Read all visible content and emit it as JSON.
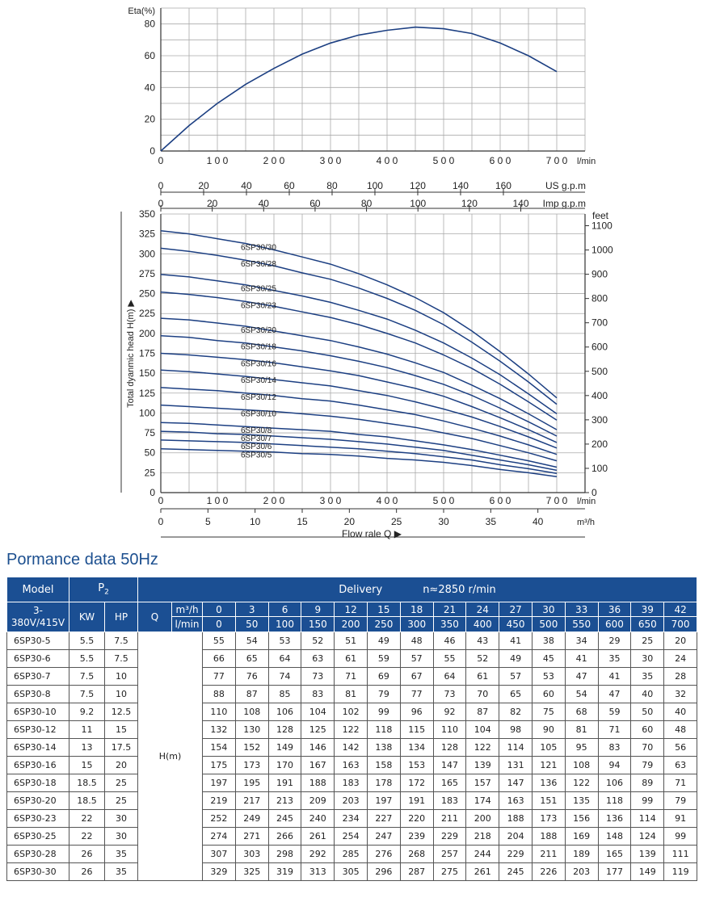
{
  "chart_data": [
    {
      "type": "line",
      "ylabel": "Eta(%)",
      "xunit": "l/min",
      "xlim": [
        0,
        700
      ],
      "ylim": [
        0,
        90
      ],
      "grid": true,
      "x_ticks": [
        0,
        100,
        200,
        300,
        400,
        500,
        600,
        700
      ],
      "y_ticks": [
        0,
        20,
        40,
        60,
        80
      ],
      "series": [
        {
          "x": [
            0,
            50,
            100,
            150,
            200,
            250,
            300,
            350,
            400,
            450,
            500,
            550,
            600,
            650,
            700
          ],
          "y": [
            0,
            16,
            30,
            42,
            52,
            61,
            68,
            73,
            76,
            78,
            77,
            74,
            68,
            60,
            50
          ]
        }
      ]
    },
    {
      "type": "line",
      "ylabel": "Total dyanmic head H(m) ▶",
      "xlabel": "Flow rale Q ▶",
      "xlim": [
        0,
        700
      ],
      "ylim": [
        0,
        350
      ],
      "grid": true,
      "x_ticks": [
        0,
        100,
        200,
        300,
        400,
        500,
        600,
        700
      ],
      "y_ticks": [
        0,
        25,
        50,
        75,
        100,
        125,
        150,
        175,
        200,
        225,
        250,
        275,
        300,
        325,
        350
      ],
      "axes": {
        "lmin": {
          "unit": "l/min",
          "ticks": [
            0,
            100,
            200,
            300,
            400,
            500,
            600,
            700
          ]
        },
        "usgpm": {
          "unit": "US g.p.m",
          "ticks": [
            0,
            20,
            40,
            60,
            80,
            100,
            120,
            140,
            160
          ]
        },
        "impgpm": {
          "unit": "Imp g.p.m",
          "ticks": [
            0,
            20,
            40,
            60,
            80,
            100,
            120,
            140
          ]
        },
        "m3h": {
          "unit": "m³/h",
          "ticks": [
            0,
            5,
            10,
            15,
            20,
            25,
            30,
            35,
            40
          ]
        },
        "feet": {
          "unit": "feet",
          "ticks": [
            0,
            100,
            200,
            300,
            400,
            500,
            600,
            700,
            800,
            900,
            1000,
            1100
          ]
        }
      },
      "x": [
        0,
        50,
        100,
        150,
        200,
        250,
        300,
        350,
        400,
        450,
        500,
        550,
        600,
        650,
        700
      ],
      "series": [
        {
          "name": "6SP30/30",
          "values": [
            329,
            325,
            319,
            313,
            305,
            296,
            287,
            275,
            261,
            245,
            226,
            203,
            177,
            149,
            119
          ]
        },
        {
          "name": "6SP30/28",
          "values": [
            307,
            303,
            298,
            292,
            285,
            276,
            268,
            257,
            244,
            229,
            211,
            189,
            165,
            139,
            111
          ]
        },
        {
          "name": "6SP30/25",
          "values": [
            274,
            271,
            266,
            261,
            254,
            247,
            239,
            229,
            218,
            204,
            188,
            169,
            148,
            124,
            99
          ]
        },
        {
          "name": "6SP30/23",
          "values": [
            252,
            249,
            245,
            240,
            234,
            227,
            220,
            211,
            200,
            188,
            173,
            156,
            136,
            114,
            91
          ]
        },
        {
          "name": "6SP30/20",
          "values": [
            219,
            217,
            213,
            209,
            203,
            197,
            191,
            183,
            174,
            163,
            151,
            135,
            118,
            99,
            79
          ]
        },
        {
          "name": "6SP30/18",
          "values": [
            197,
            195,
            191,
            188,
            183,
            178,
            172,
            165,
            157,
            147,
            136,
            122,
            106,
            89,
            71
          ]
        },
        {
          "name": "6SP30/16",
          "values": [
            175,
            173,
            170,
            167,
            163,
            158,
            153,
            147,
            139,
            131,
            121,
            108,
            94,
            79,
            63
          ]
        },
        {
          "name": "6SP30/14",
          "values": [
            154,
            152,
            149,
            146,
            142,
            138,
            134,
            128,
            122,
            114,
            105,
            95,
            83,
            70,
            56
          ]
        },
        {
          "name": "6SP30/12",
          "values": [
            132,
            130,
            128,
            125,
            122,
            118,
            115,
            110,
            104,
            98,
            90,
            81,
            71,
            60,
            48
          ]
        },
        {
          "name": "6SP30/10",
          "values": [
            110,
            108,
            106,
            104,
            102,
            99,
            96,
            92,
            87,
            82,
            75,
            68,
            59,
            50,
            40
          ]
        },
        {
          "name": "6SP30/8",
          "values": [
            88,
            87,
            85,
            83,
            81,
            79,
            77,
            73,
            70,
            65,
            60,
            54,
            47,
            40,
            32
          ]
        },
        {
          "name": "6SP30/7",
          "values": [
            77,
            76,
            74,
            73,
            71,
            69,
            67,
            64,
            61,
            57,
            53,
            47,
            41,
            35,
            28
          ]
        },
        {
          "name": "6SP30/6",
          "values": [
            66,
            65,
            64,
            63,
            61,
            59,
            57,
            55,
            52,
            49,
            45,
            41,
            35,
            30,
            24
          ]
        },
        {
          "name": "6SP30/5",
          "values": [
            55,
            54,
            53,
            52,
            51,
            49,
            48,
            46,
            43,
            41,
            38,
            34,
            29,
            25,
            20
          ]
        }
      ]
    }
  ],
  "perf": {
    "title": "Pormance data 50Hz",
    "hdr": {
      "model": "Model",
      "p2": "P",
      "p2_sub": "2",
      "delivery": "Delivery",
      "speed": "n≈2850 r/min",
      "voltage": "3-\n380V/415V",
      "kw": "KW",
      "hp": "HP",
      "q": "Q",
      "m3h": "m³/h",
      "lmin": "l/min",
      "hm": "H(m)"
    },
    "q_m3h": [
      "0",
      "3",
      "6",
      "9",
      "12",
      "15",
      "18",
      "21",
      "24",
      "27",
      "30",
      "33",
      "36",
      "39",
      "42"
    ],
    "q_lmin": [
      "0",
      "50",
      "100",
      "150",
      "200",
      "250",
      "300",
      "350",
      "400",
      "450",
      "500",
      "550",
      "600",
      "650",
      "700"
    ],
    "rows": [
      {
        "model": "6SP30-5",
        "kw": "5.5",
        "hp": "7.5",
        "h": [
          "55",
          "54",
          "53",
          "52",
          "51",
          "49",
          "48",
          "46",
          "43",
          "41",
          "38",
          "34",
          "29",
          "25",
          "20"
        ]
      },
      {
        "model": "6SP30-6",
        "kw": "5.5",
        "hp": "7.5",
        "h": [
          "66",
          "65",
          "64",
          "63",
          "61",
          "59",
          "57",
          "55",
          "52",
          "49",
          "45",
          "41",
          "35",
          "30",
          "24"
        ]
      },
      {
        "model": "6SP30-7",
        "kw": "7.5",
        "hp": "10",
        "h": [
          "77",
          "76",
          "74",
          "73",
          "71",
          "69",
          "67",
          "64",
          "61",
          "57",
          "53",
          "47",
          "41",
          "35",
          "28"
        ]
      },
      {
        "model": "6SP30-8",
        "kw": "7.5",
        "hp": "10",
        "h": [
          "88",
          "87",
          "85",
          "83",
          "81",
          "79",
          "77",
          "73",
          "70",
          "65",
          "60",
          "54",
          "47",
          "40",
          "32"
        ]
      },
      {
        "model": "6SP30-10",
        "kw": "9.2",
        "hp": "12.5",
        "h": [
          "110",
          "108",
          "106",
          "104",
          "102",
          "99",
          "96",
          "92",
          "87",
          "82",
          "75",
          "68",
          "59",
          "50",
          "40"
        ]
      },
      {
        "model": "6SP30-12",
        "kw": "11",
        "hp": "15",
        "h": [
          "132",
          "130",
          "128",
          "125",
          "122",
          "118",
          "115",
          "110",
          "104",
          "98",
          "90",
          "81",
          "71",
          "60",
          "48"
        ]
      },
      {
        "model": "6SP30-14",
        "kw": "13",
        "hp": "17.5",
        "h": [
          "154",
          "152",
          "149",
          "146",
          "142",
          "138",
          "134",
          "128",
          "122",
          "114",
          "105",
          "95",
          "83",
          "70",
          "56"
        ]
      },
      {
        "model": "6SP30-16",
        "kw": "15",
        "hp": "20",
        "h": [
          "175",
          "173",
          "170",
          "167",
          "163",
          "158",
          "153",
          "147",
          "139",
          "131",
          "121",
          "108",
          "94",
          "79",
          "63"
        ]
      },
      {
        "model": "6SP30-18",
        "kw": "18.5",
        "hp": "25",
        "h": [
          "197",
          "195",
          "191",
          "188",
          "183",
          "178",
          "172",
          "165",
          "157",
          "147",
          "136",
          "122",
          "106",
          "89",
          "71"
        ]
      },
      {
        "model": "6SP30-20",
        "kw": "18.5",
        "hp": "25",
        "h": [
          "219",
          "217",
          "213",
          "209",
          "203",
          "197",
          "191",
          "183",
          "174",
          "163",
          "151",
          "135",
          "118",
          "99",
          "79"
        ]
      },
      {
        "model": "6SP30-23",
        "kw": "22",
        "hp": "30",
        "h": [
          "252",
          "249",
          "245",
          "240",
          "234",
          "227",
          "220",
          "211",
          "200",
          "188",
          "173",
          "156",
          "136",
          "114",
          "91"
        ]
      },
      {
        "model": "6SP30-25",
        "kw": "22",
        "hp": "30",
        "h": [
          "274",
          "271",
          "266",
          "261",
          "254",
          "247",
          "239",
          "229",
          "218",
          "204",
          "188",
          "169",
          "148",
          "124",
          "99"
        ]
      },
      {
        "model": "6SP30-28",
        "kw": "26",
        "hp": "35",
        "h": [
          "307",
          "303",
          "298",
          "292",
          "285",
          "276",
          "268",
          "257",
          "244",
          "229",
          "211",
          "189",
          "165",
          "139",
          "111"
        ]
      },
      {
        "model": "6SP30-30",
        "kw": "26",
        "hp": "35",
        "h": [
          "329",
          "325",
          "319",
          "313",
          "305",
          "296",
          "287",
          "275",
          "261",
          "245",
          "226",
          "203",
          "177",
          "149",
          "119"
        ]
      }
    ]
  },
  "colors": {
    "curve": "#1c3f82",
    "grid": "#aaaaaa",
    "axis": "#333333",
    "header_bg": "#1b4f93",
    "title": "#1c4f8f"
  }
}
